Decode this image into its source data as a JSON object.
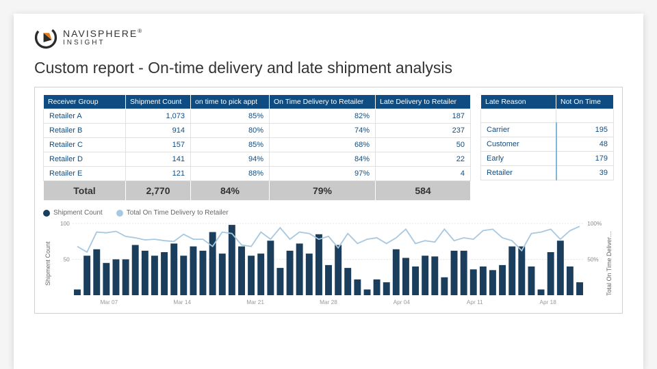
{
  "brand": {
    "name_line1": "NAVISPHERE",
    "name_line2": "INSIGHT",
    "mark_outer_color": "#2b2b2b",
    "mark_accent_color": "#e67817"
  },
  "page_title": "Custom report - On-time delivery and late shipment analysis",
  "colors": {
    "header_bg": "#0f4c81",
    "header_fg": "#ffffff",
    "cell_fg": "#0f4c81",
    "total_bg": "#c9c9c9",
    "total_fg": "#333333",
    "bar_fill": "#1a3e5c",
    "line_stroke": "#a8c8e0",
    "grid": "#cccccc"
  },
  "main_table": {
    "columns": [
      "Receiver Group",
      "Shipment Count",
      "on time to pick appt",
      "On Time Delivery to Retailer",
      "Late Delivery to Retailer"
    ],
    "rows": [
      {
        "group": "Retailer A",
        "count": "1,073",
        "pick": "85%",
        "ontime": "82%",
        "late": "187"
      },
      {
        "group": "Retailer B",
        "count": "914",
        "pick": "80%",
        "ontime": "74%",
        "late": "237"
      },
      {
        "group": "Retailer C",
        "count": "157",
        "pick": "85%",
        "ontime": "68%",
        "late": "50"
      },
      {
        "group": "Retailer D",
        "count": "141",
        "pick": "94%",
        "ontime": "84%",
        "late": "22"
      },
      {
        "group": "Retailer E",
        "count": "121",
        "pick": "88%",
        "ontime": "97%",
        "late": "4"
      }
    ],
    "total": {
      "label": "Total",
      "count": "2,770",
      "pick": "84%",
      "ontime": "79%",
      "late": "584"
    }
  },
  "side_table": {
    "columns": [
      "Late Reason",
      "Not On Time"
    ],
    "blank_first_row": true,
    "rows": [
      {
        "reason": "Carrier",
        "count": "195"
      },
      {
        "reason": "Customer",
        "count": "48"
      },
      {
        "reason": "Early",
        "count": "179"
      },
      {
        "reason": "Retailer",
        "count": "39"
      }
    ]
  },
  "chart": {
    "type": "bar+line",
    "legend": [
      {
        "label": "Shipment Count",
        "color": "#1a3e5c",
        "shape": "circle"
      },
      {
        "label": "Total On Time Delivery to Retailer",
        "color": "#a8c8e0",
        "shape": "circle"
      }
    ],
    "ylabel_left": "Shipment Count",
    "ylabel_right": "Total On Time Deliver…",
    "y_left": {
      "min": 0,
      "max": 100,
      "ticks": [
        50,
        100
      ]
    },
    "y_right": {
      "min": 0,
      "max": 100,
      "ticks": [
        50,
        100
      ],
      "suffix": "%"
    },
    "x_labels": [
      "Mar 07",
      "Mar 14",
      "Mar 21",
      "Mar 28",
      "Apr 04",
      "Apr 11",
      "Apr 18"
    ],
    "bars": [
      8,
      55,
      64,
      45,
      50,
      50,
      70,
      62,
      55,
      60,
      72,
      55,
      68,
      62,
      88,
      58,
      98,
      68,
      55,
      58,
      76,
      38,
      62,
      72,
      58,
      85,
      42,
      70,
      38,
      22,
      8,
      22,
      18,
      64,
      52,
      40,
      55,
      54,
      25,
      62,
      62,
      36,
      40,
      35,
      42,
      68,
      68,
      40,
      8,
      60,
      76,
      40,
      18
    ],
    "line_pct": [
      68,
      60,
      88,
      87,
      89,
      82,
      80,
      77,
      78,
      76,
      75,
      85,
      78,
      78,
      68,
      88,
      86,
      70,
      68,
      88,
      78,
      94,
      78,
      88,
      86,
      78,
      82,
      66,
      86,
      72,
      78,
      80,
      72,
      80,
      92,
      72,
      76,
      74,
      92,
      76,
      80,
      78,
      90,
      92,
      80,
      76,
      62,
      86,
      88,
      92,
      78,
      90,
      96
    ]
  }
}
